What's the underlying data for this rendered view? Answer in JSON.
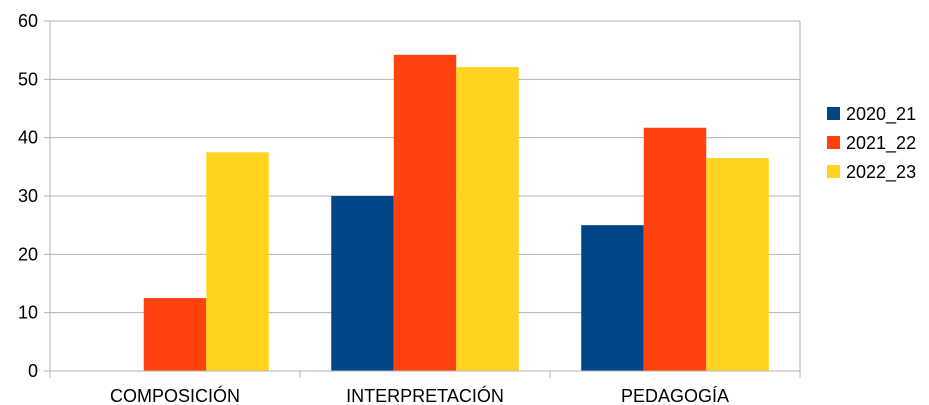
{
  "chart_data": {
    "type": "bar",
    "title": "",
    "xlabel": "",
    "ylabel": "",
    "categories": [
      "COMPOSICIÓN",
      "INTERPRETACIÓN",
      "PEDAGOGÍA"
    ],
    "series": [
      {
        "name": "2020_21",
        "color": "#004586",
        "values": [
          0,
          30,
          25
        ]
      },
      {
        "name": "2021_22",
        "color": "#ff420e",
        "values": [
          12.5,
          54.2,
          41.7
        ]
      },
      {
        "name": "2022_23",
        "color": "#ffd320",
        "values": [
          37.5,
          52.1,
          36.5
        ]
      }
    ],
    "ylim": [
      0,
      60
    ],
    "yticks": [
      0,
      10,
      20,
      30,
      40,
      50,
      60
    ],
    "grid": true,
    "legend_position": "right"
  }
}
